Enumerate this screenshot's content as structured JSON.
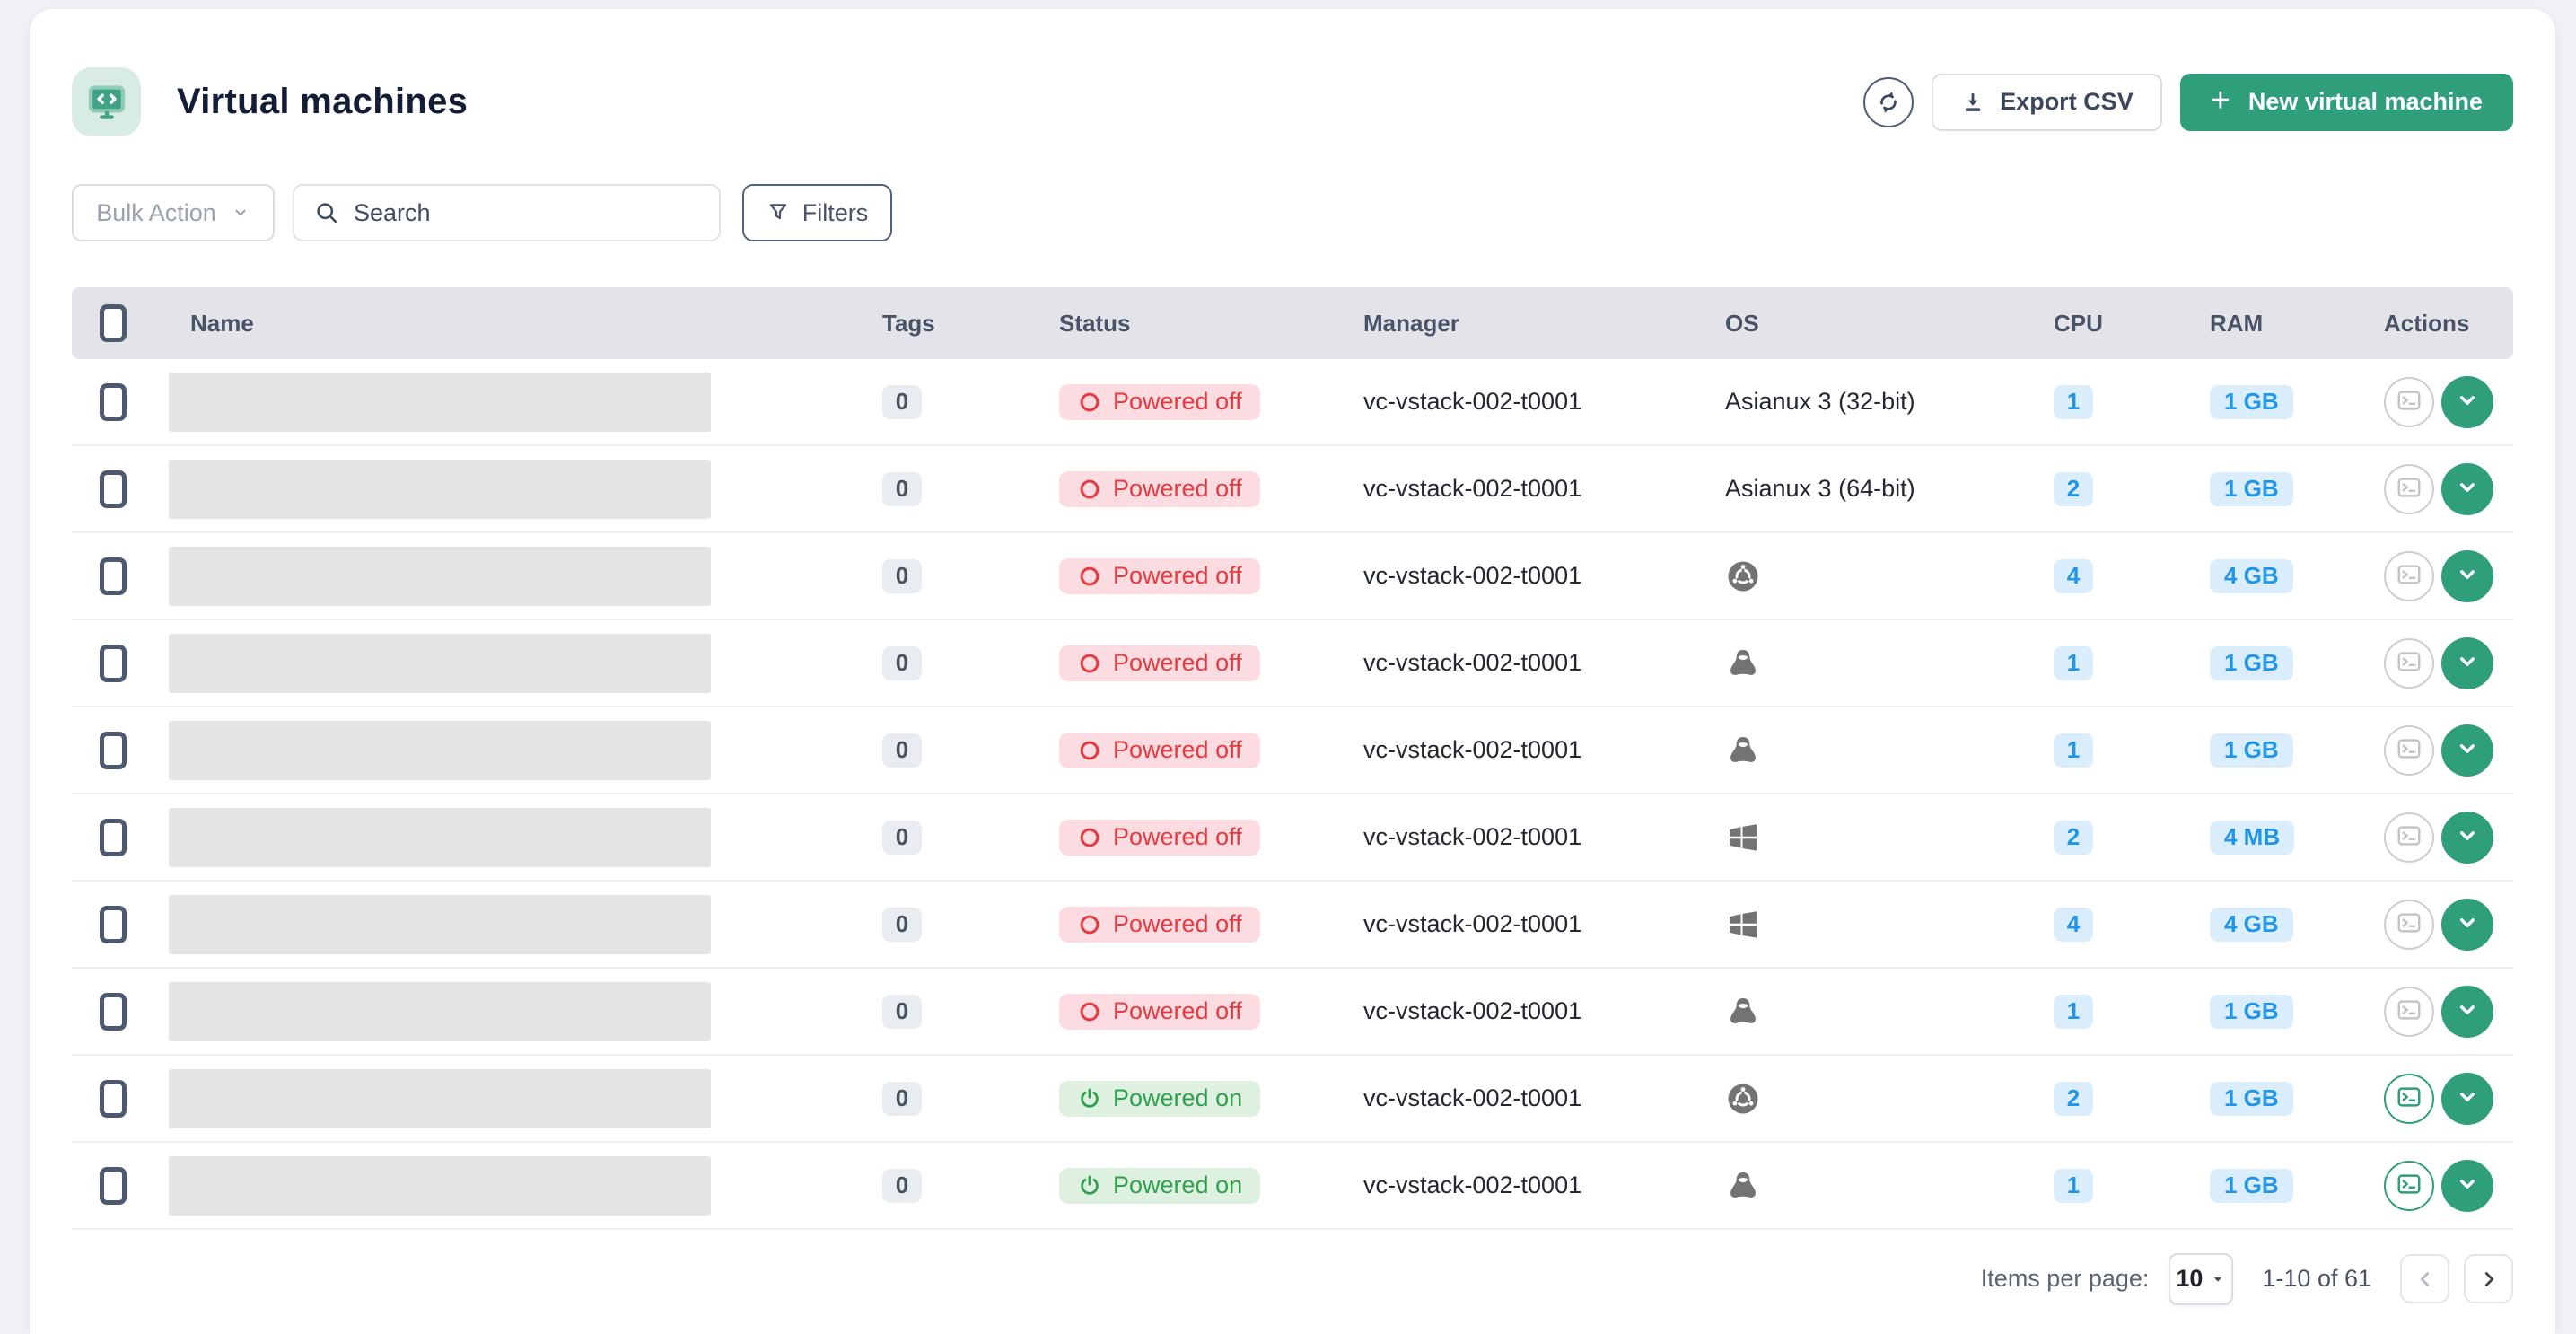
{
  "header": {
    "title": "Virtual machines",
    "export_label": "Export CSV",
    "new_vm_plus": "+",
    "new_vm_label": "New virtual machine"
  },
  "toolbar": {
    "bulk_action_label": "Bulk Action",
    "search_placeholder": "Search",
    "filters_label": "Filters"
  },
  "table": {
    "columns": [
      "Name",
      "Tags",
      "Status",
      "Manager",
      "OS",
      "CPU",
      "RAM",
      "Actions"
    ]
  },
  "rows": [
    {
      "tags": "0",
      "status": "Powered off",
      "power": "off",
      "manager": "vc-vstack-002-t0001",
      "os_text": "Asianux 3 (32-bit)",
      "os_icon": "",
      "cpu": "1",
      "ram": "1 GB"
    },
    {
      "tags": "0",
      "status": "Powered off",
      "power": "off",
      "manager": "vc-vstack-002-t0001",
      "os_text": "Asianux 3 (64-bit)",
      "os_icon": "",
      "cpu": "2",
      "ram": "1 GB"
    },
    {
      "tags": "0",
      "status": "Powered off",
      "power": "off",
      "manager": "vc-vstack-002-t0001",
      "os_text": "",
      "os_icon": "ubuntu-icon",
      "cpu": "4",
      "ram": "4 GB"
    },
    {
      "tags": "0",
      "status": "Powered off",
      "power": "off",
      "manager": "vc-vstack-002-t0001",
      "os_text": "",
      "os_icon": "linux-icon",
      "cpu": "1",
      "ram": "1 GB"
    },
    {
      "tags": "0",
      "status": "Powered off",
      "power": "off",
      "manager": "vc-vstack-002-t0001",
      "os_text": "",
      "os_icon": "linux-icon",
      "cpu": "1",
      "ram": "1 GB"
    },
    {
      "tags": "0",
      "status": "Powered off",
      "power": "off",
      "manager": "vc-vstack-002-t0001",
      "os_text": "",
      "os_icon": "windows-icon",
      "cpu": "2",
      "ram": "4 MB"
    },
    {
      "tags": "0",
      "status": "Powered off",
      "power": "off",
      "manager": "vc-vstack-002-t0001",
      "os_text": "",
      "os_icon": "windows-icon",
      "cpu": "4",
      "ram": "4 GB"
    },
    {
      "tags": "0",
      "status": "Powered off",
      "power": "off",
      "manager": "vc-vstack-002-t0001",
      "os_text": "",
      "os_icon": "linux-icon",
      "cpu": "1",
      "ram": "1 GB"
    },
    {
      "tags": "0",
      "status": "Powered on",
      "power": "on",
      "manager": "vc-vstack-002-t0001",
      "os_text": "",
      "os_icon": "ubuntu-icon",
      "cpu": "2",
      "ram": "1 GB"
    },
    {
      "tags": "0",
      "status": "Powered on",
      "power": "on",
      "manager": "vc-vstack-002-t0001",
      "os_text": "",
      "os_icon": "linux-icon",
      "cpu": "1",
      "ram": "1 GB"
    }
  ],
  "footer": {
    "items_per_page_label": "Items per page:",
    "page_size": "10",
    "range": "1-10 of 61"
  },
  "colors": {
    "accent_green": "#2f9e7b",
    "powered_off_text": "#e63a41",
    "powered_off_bg": "#fcdce0",
    "powered_on_text": "#2fa14c",
    "powered_on_bg": "#def1e1",
    "badge_blue_text": "#2196e8",
    "badge_blue_bg": "#d9edfd"
  }
}
